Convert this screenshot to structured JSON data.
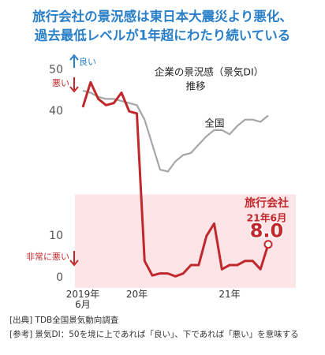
{
  "chart_data": {
    "type": "line",
    "title_lines": [
      "旅行会社の景況感は東日本大震災より悪化、",
      "過去最低レベルが1年超にわたり続いている"
    ],
    "chart_label_lines": [
      "企業の景況感（景気DI）",
      "推移"
    ],
    "categories": [
      "2019年\n6月",
      null,
      null,
      null,
      null,
      null,
      null,
      "20年",
      null,
      null,
      null,
      null,
      null,
      null,
      null,
      null,
      null,
      null,
      null,
      "21年",
      null,
      null,
      null,
      null,
      null
    ],
    "series": [
      {
        "name": "全国",
        "color": "#a6a6a6",
        "values": [
          45,
          44.5,
          43.5,
          43,
          43,
          42.5,
          42,
          41.5,
          38,
          32,
          26,
          25.5,
          28,
          29.5,
          30,
          32,
          34,
          35.5,
          35.5,
          34.5,
          36.5,
          38,
          38,
          37.5,
          39
        ]
      },
      {
        "name": "旅行会社",
        "color": "#c0282d",
        "values": [
          41,
          47,
          43,
          41.5,
          42,
          44.5,
          40,
          39.5,
          4,
          0.5,
          1,
          1,
          0.3,
          1,
          3,
          3,
          10,
          13,
          2,
          3,
          3,
          4,
          4,
          2,
          8
        ],
        "value_labels": [
          null,
          null,
          null,
          null,
          null,
          null,
          null,
          null,
          null,
          null,
          null,
          null,
          null,
          null,
          null,
          null,
          null,
          null,
          null,
          null,
          null,
          null,
          null,
          null,
          "8.0"
        ],
        "highlight_label": "21年6月"
      }
    ],
    "ylim": [
      -2.5,
      52
    ],
    "yticks": [
      0,
      10,
      40,
      50
    ],
    "shade_below": 20,
    "shade_color": "#fde4e6",
    "annotations": {
      "good": "良い",
      "bad": "悪い",
      "very_bad": "非常に悪い"
    },
    "source_lines": [
      "[出典] TDB全国景気動向調査",
      "[参考] 景気DI：50を境に上であれば「良い」、下であれば「悪い」を意味する"
    ]
  }
}
